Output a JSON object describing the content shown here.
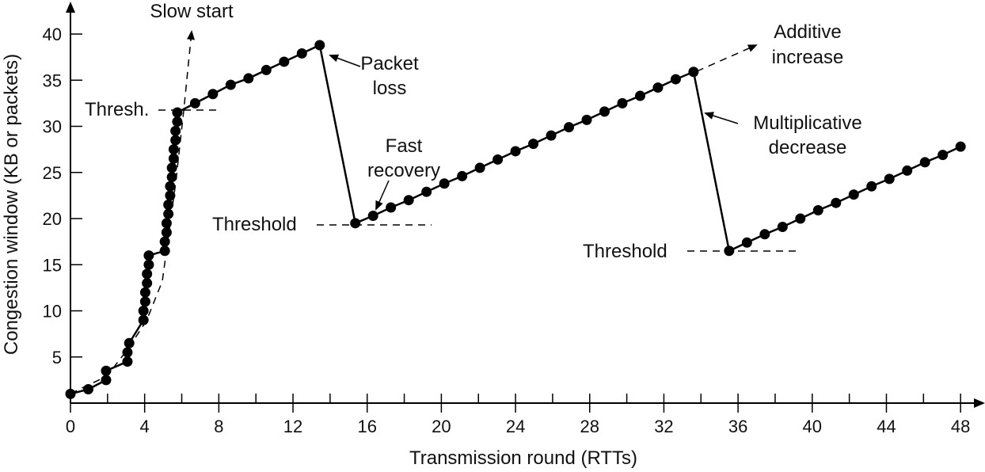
{
  "chart_data": {
    "type": "line",
    "xlabel": "Transmission round (RTTs)",
    "ylabel": "Congestion window (KB or packets)",
    "xlim": [
      0,
      49
    ],
    "ylim": [
      0,
      42
    ],
    "xticks": [
      0,
      4,
      8,
      12,
      16,
      20,
      24,
      28,
      32,
      36,
      40,
      44,
      48
    ],
    "yticks": [
      5,
      10,
      15,
      20,
      25,
      30,
      35,
      40
    ],
    "grid": false,
    "legend": "none",
    "colors": {
      "line": "#000000",
      "marker": "#000000",
      "dashed": "#000000"
    },
    "series": [
      {
        "points": [
          [
            0,
            1
          ],
          [
            1,
            1.5
          ],
          [
            2,
            2.5
          ],
          [
            2,
            3.5
          ],
          [
            3.2,
            4.5
          ],
          [
            3.2,
            5.5
          ],
          [
            3.3,
            6.5
          ],
          [
            4.1,
            9
          ],
          [
            4.1,
            10
          ],
          [
            4.2,
            11
          ],
          [
            4.2,
            12
          ],
          [
            4.3,
            13
          ],
          [
            4.3,
            14
          ],
          [
            4.4,
            15
          ],
          [
            4.4,
            16
          ],
          [
            5.3,
            16.5
          ],
          [
            5.3,
            17.5
          ],
          [
            5.4,
            18.5
          ],
          [
            5.4,
            19.5
          ],
          [
            5.5,
            20.5
          ],
          [
            5.5,
            21.5
          ],
          [
            5.6,
            22.5
          ],
          [
            5.6,
            23.5
          ],
          [
            5.7,
            24.5
          ],
          [
            5.7,
            25.5
          ],
          [
            5.8,
            26.5
          ],
          [
            5.8,
            27.5
          ],
          [
            5.9,
            28.5
          ],
          [
            5.9,
            29.5
          ],
          [
            6,
            30.5
          ],
          [
            6,
            31.5
          ],
          [
            7,
            32.5
          ],
          [
            8,
            33.5
          ],
          [
            9,
            34.5
          ],
          [
            10,
            35.2
          ],
          [
            11,
            36.1
          ],
          [
            12,
            37
          ],
          [
            13,
            37.9
          ],
          [
            14,
            38.8
          ],
          [
            16,
            19.5
          ],
          [
            17,
            20.3
          ],
          [
            18,
            21.2
          ],
          [
            19,
            22
          ],
          [
            20,
            22.9
          ],
          [
            21,
            23.8
          ],
          [
            22,
            24.6
          ],
          [
            23,
            25.5
          ],
          [
            24,
            26.4
          ],
          [
            25,
            27.3
          ],
          [
            26,
            28.1
          ],
          [
            27,
            29
          ],
          [
            28,
            29.9
          ],
          [
            29,
            30.7
          ],
          [
            30,
            31.6
          ],
          [
            31,
            32.5
          ],
          [
            32,
            33.3
          ],
          [
            33,
            34.2
          ],
          [
            34,
            35.1
          ],
          [
            35,
            35.9
          ],
          [
            37,
            16.5
          ],
          [
            38,
            17.4
          ],
          [
            39,
            18.3
          ],
          [
            40,
            19.1
          ],
          [
            41,
            20
          ],
          [
            42,
            20.9
          ],
          [
            43,
            21.7
          ],
          [
            44,
            22.6
          ],
          [
            45,
            23.5
          ],
          [
            46,
            24.3
          ],
          [
            47,
            25.2
          ],
          [
            48,
            26.1
          ],
          [
            49,
            26.9
          ],
          [
            50,
            27.8
          ]
        ]
      }
    ],
    "annotations": {
      "slow_start": "Slow start",
      "thresh_short": "Thresh.",
      "packet_loss_1": "Packet",
      "packet_loss_2": "loss",
      "fast_recovery_1": "Fast",
      "fast_recovery_2": "recovery",
      "threshold_1": "Threshold",
      "additive_1": "Additive",
      "additive_2": "increase",
      "multiplicative_1": "Multiplicative",
      "multiplicative_2": "decrease",
      "threshold_2": "Threshold"
    }
  }
}
